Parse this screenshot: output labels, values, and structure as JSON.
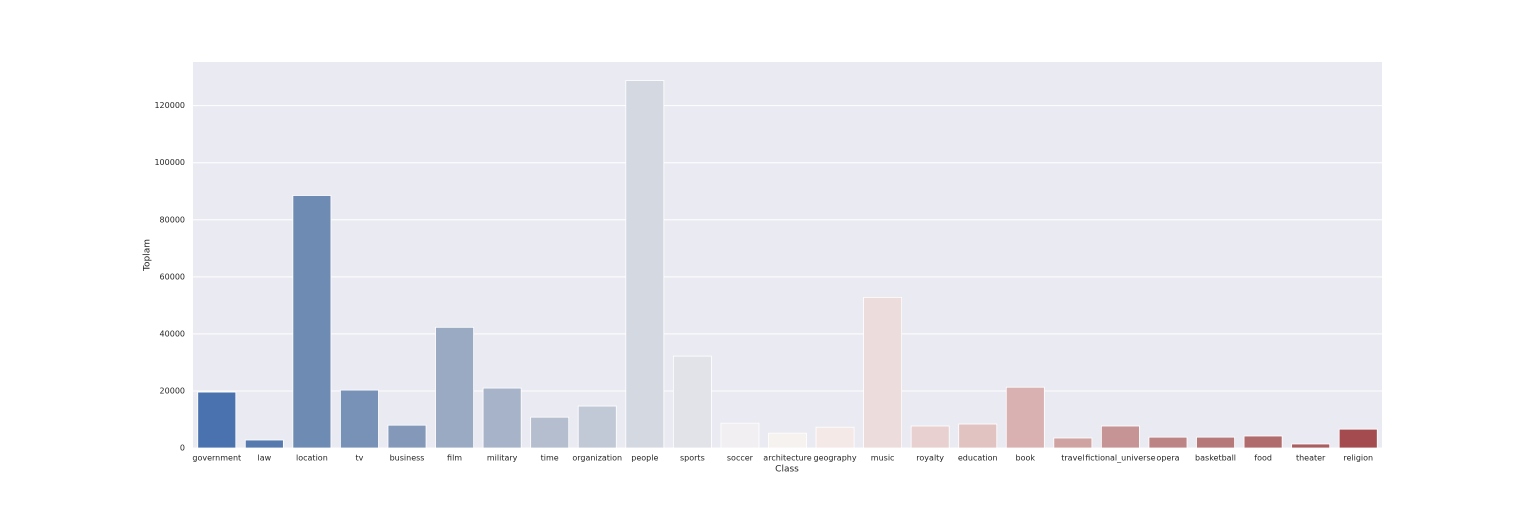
{
  "chart_data": {
    "type": "bar",
    "xlabel": "Class",
    "ylabel": "Toplam",
    "categories": [
      "government",
      "law",
      "location",
      "tv",
      "business",
      "film",
      "military",
      "time",
      "organization",
      "people",
      "sports",
      "soccer",
      "architecture",
      "geography",
      "music",
      "royalty",
      "education",
      "book",
      "travel",
      "fictional_universe",
      "opera",
      "basketball",
      "food",
      "theater",
      "religion"
    ],
    "values": [
      19600,
      2800,
      88500,
      20300,
      8000,
      42300,
      21000,
      10800,
      14700,
      128800,
      32200,
      8700,
      5200,
      7300,
      52800,
      7700,
      8400,
      21300,
      3500,
      7700,
      3800,
      3800,
      4200,
      1400,
      6600
    ],
    "colors": [
      "#4a72ae",
      "#5679ae",
      "#6e8bb3",
      "#7892b7",
      "#8499ba",
      "#9aaac3",
      "#a6b3c8",
      "#b4bece",
      "#c2c9d6",
      "#d4d8e1",
      "#e2e3e8",
      "#f1eff1",
      "#f6f2f0",
      "#f5e9e8",
      "#eddcdc",
      "#e8d0d0",
      "#e1c3c2",
      "#d8b1b0",
      "#cfa3a2",
      "#c69495",
      "#bd8485",
      "#b67879",
      "#b06b6c",
      "#a95e60",
      "#a44b4f"
    ],
    "ylim": [
      0,
      135300
    ],
    "yticks": [
      0,
      20000,
      40000,
      60000,
      80000,
      100000,
      120000
    ],
    "grid": true
  }
}
